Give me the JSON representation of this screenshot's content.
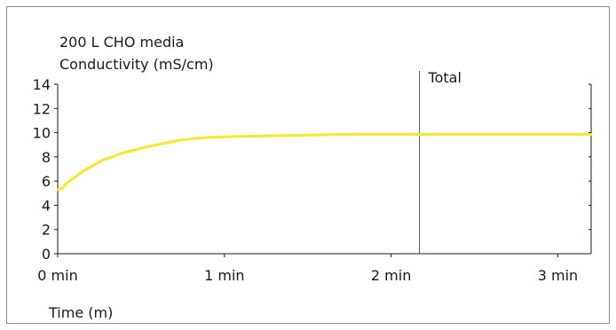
{
  "chart_data": {
    "type": "line",
    "title": "200 L CHO media",
    "ylabel": "Conductivity (mS/cm)",
    "xlabel": "Time (m)",
    "ylim": [
      0,
      14
    ],
    "xlim": [
      0,
      3.2
    ],
    "y_ticks": [
      0,
      2,
      4,
      6,
      8,
      10,
      12,
      14
    ],
    "x_ticks": [
      {
        "value": 0,
        "label": "0 min"
      },
      {
        "value": 1,
        "label": "1 min"
      },
      {
        "value": 2,
        "label": "2 min"
      },
      {
        "value": 3,
        "label": "3 min"
      }
    ],
    "grid": false,
    "annotations": [
      {
        "x": 2.17,
        "label": "Total"
      }
    ],
    "series": [
      {
        "color": "#f5e82a",
        "points": [
          [
            0.0,
            5.3
          ],
          [
            0.03,
            5.4
          ],
          [
            0.05,
            5.8
          ],
          [
            0.07,
            6.0
          ],
          [
            0.1,
            6.3
          ],
          [
            0.13,
            6.6
          ],
          [
            0.16,
            6.9
          ],
          [
            0.2,
            7.2
          ],
          [
            0.24,
            7.5
          ],
          [
            0.28,
            7.8
          ],
          [
            0.33,
            8.0
          ],
          [
            0.38,
            8.3
          ],
          [
            0.44,
            8.5
          ],
          [
            0.5,
            8.7
          ],
          [
            0.56,
            8.9
          ],
          [
            0.63,
            9.1
          ],
          [
            0.7,
            9.3
          ],
          [
            0.8,
            9.5
          ],
          [
            0.9,
            9.6
          ],
          [
            1.0,
            9.65
          ],
          [
            1.1,
            9.7
          ],
          [
            1.3,
            9.75
          ],
          [
            1.5,
            9.8
          ],
          [
            1.7,
            9.85
          ],
          [
            2.0,
            9.85
          ],
          [
            2.5,
            9.85
          ],
          [
            3.0,
            9.85
          ],
          [
            3.2,
            9.85
          ]
        ]
      }
    ]
  }
}
